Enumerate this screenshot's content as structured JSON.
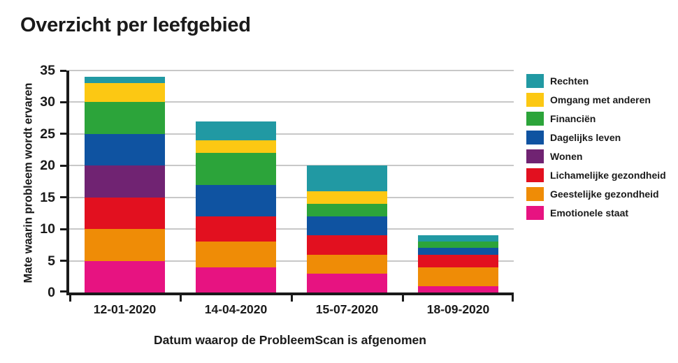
{
  "title": "Overzicht per leefgebied",
  "chart_data": {
    "type": "bar",
    "stacked": true,
    "title": "Overzicht per leefgebied",
    "xlabel": "Datum waarop de ProbleemScan is afgenomen",
    "ylabel": "Mate waarin probleem wordt ervaren",
    "categories": [
      "12-01-2020",
      "14-04-2020",
      "15-07-2020",
      "18-09-2020"
    ],
    "series": [
      {
        "name": "Rechten",
        "color": "#2199a3",
        "values": [
          1,
          3,
          4,
          1
        ]
      },
      {
        "name": "Omgang met anderen",
        "color": "#fcc813",
        "values": [
          3,
          2,
          2,
          0
        ]
      },
      {
        "name": "Financiën",
        "color": "#2ca43a",
        "values": [
          5,
          5,
          2,
          1
        ]
      },
      {
        "name": "Dagelijks leven",
        "color": "#0f53a1",
        "values": [
          5,
          5,
          3,
          1
        ]
      },
      {
        "name": "Wonen",
        "color": "#702372",
        "values": [
          5,
          0,
          0,
          0
        ]
      },
      {
        "name": "Lichamelijke gezondheid",
        "color": "#e2101f",
        "values": [
          5,
          4,
          3,
          2
        ]
      },
      {
        "name": "Geestelijke gezondheid",
        "color": "#ef8c06",
        "values": [
          5,
          4,
          3,
          3
        ]
      },
      {
        "name": "Emotionele staat",
        "color": "#e71381",
        "values": [
          5,
          4,
          3,
          1
        ]
      }
    ],
    "stack_totals": [
      34,
      27,
      20,
      9
    ],
    "ylim": [
      0,
      35
    ],
    "y_ticks": [
      0,
      5,
      10,
      15,
      20,
      25,
      30,
      35
    ],
    "grid": "horizontal",
    "legend_position": "right"
  },
  "colors": {
    "background": "#ffffff",
    "axis": "#1a1a1a",
    "gridline": "#c8c8c8",
    "text": "#1a1a1a"
  }
}
